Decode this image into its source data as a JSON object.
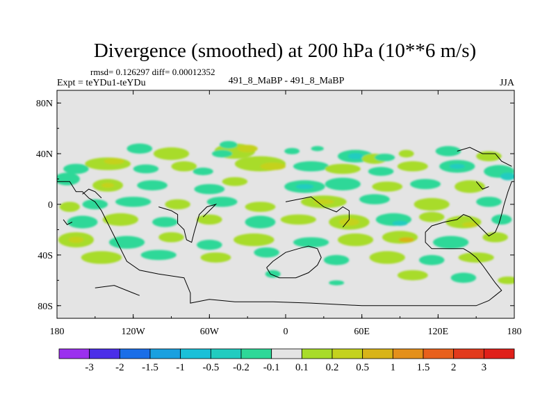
{
  "chart_data": {
    "type": "heatmap",
    "title": "Divergence (smoothed) at 200 hPa (10**6 m/s)",
    "stats_line": "rmsd= 0.126297 diff= 0.00012352",
    "left_label": "Expt = teYDu1-teYDu",
    "center_label": "491_8_MaBP - 491_8_MaBP",
    "right_label": "JJA",
    "x_axis": {
      "range": [
        -180,
        180
      ],
      "ticks": [
        {
          "value": -180,
          "label": "180"
        },
        {
          "value": -120,
          "label": "120W"
        },
        {
          "value": -60,
          "label": "60W"
        },
        {
          "value": 0,
          "label": "0"
        },
        {
          "value": 60,
          "label": "60E"
        },
        {
          "value": 120,
          "label": "120E"
        },
        {
          "value": 180,
          "label": "180"
        }
      ]
    },
    "y_axis": {
      "range": [
        -90,
        90
      ],
      "ticks": [
        {
          "value": 80,
          "label": "80N"
        },
        {
          "value": 40,
          "label": "40N"
        },
        {
          "value": 0,
          "label": "0"
        },
        {
          "value": -40,
          "label": "40S"
        },
        {
          "value": -80,
          "label": "80S"
        }
      ]
    },
    "colorbar": {
      "labels": [
        "-3",
        "-2",
        "-1.5",
        "-1",
        "-0.5",
        "-0.2",
        "-0.1",
        "0.1",
        "0.2",
        "0.5",
        "1",
        "1.5",
        "2",
        "3"
      ],
      "colors": [
        "#9b30ee",
        "#4b2ee8",
        "#1a6ee8",
        "#1aa0e0",
        "#1ac0d8",
        "#22ccc0",
        "#2ed898",
        "#e4e4e4",
        "#a8dc2a",
        "#c4d21e",
        "#d8b418",
        "#e4901a",
        "#e8601c",
        "#e23a1c",
        "#e0201a"
      ]
    },
    "anomaly_colors": {
      "pos1": "#a8dc2a",
      "pos2": "#c4d21e",
      "pos3": "#d8b418",
      "neg1": "#2ed898",
      "neg2": "#22ccc0",
      "neg3": "#1ac0d8"
    },
    "field_blobs": [
      {
        "lon": 55,
        "lat": 38,
        "rlon": 14,
        "rlat": 5,
        "level": -1
      },
      {
        "lon": 55,
        "lat": 38,
        "rlon": 6,
        "rlat": 2.5,
        "level": -2
      },
      {
        "lon": 70,
        "lat": 36,
        "rlon": 10,
        "rlat": 4,
        "level": 1
      },
      {
        "lon": 78,
        "lat": 37,
        "rlon": 8,
        "rlat": 3,
        "level": -1
      },
      {
        "lon": -115,
        "lat": 44,
        "rlon": 10,
        "rlat": 4,
        "level": -1
      },
      {
        "lon": -90,
        "lat": 40,
        "rlon": 14,
        "rlat": 5,
        "level": 1
      },
      {
        "lon": -40,
        "lat": 42,
        "rlon": 16,
        "rlat": 6,
        "level": 1
      },
      {
        "lon": -30,
        "lat": 44,
        "rlon": 8,
        "rlat": 3,
        "level": 2
      },
      {
        "lon": -50,
        "lat": 40,
        "rlon": 8,
        "rlat": 3,
        "level": -1
      },
      {
        "lon": -45,
        "lat": 47,
        "rlon": 7,
        "rlat": 3,
        "level": -1
      },
      {
        "lon": 5,
        "lat": 42,
        "rlon": 6,
        "rlat": 2.5,
        "level": -1
      },
      {
        "lon": 25,
        "lat": 44,
        "rlon": 5,
        "rlat": 2,
        "level": -1
      },
      {
        "lon": 95,
        "lat": 40,
        "rlon": 6,
        "rlat": 3,
        "level": 1
      },
      {
        "lon": 128,
        "lat": 42,
        "rlon": 10,
        "rlat": 4,
        "level": -1
      },
      {
        "lon": 160,
        "lat": 38,
        "rlon": 10,
        "rlat": 4,
        "level": 1
      },
      {
        "lon": -140,
        "lat": 32,
        "rlon": 18,
        "rlat": 5,
        "level": 1
      },
      {
        "lon": -135,
        "lat": 34,
        "rlon": 8,
        "rlat": 2.5,
        "level": 2
      },
      {
        "lon": -165,
        "lat": 28,
        "rlon": 10,
        "rlat": 4,
        "level": -1
      },
      {
        "lon": -110,
        "lat": 28,
        "rlon": 10,
        "rlat": 3.5,
        "level": -1
      },
      {
        "lon": -80,
        "lat": 30,
        "rlon": 10,
        "rlat": 4,
        "level": 1
      },
      {
        "lon": -65,
        "lat": 26,
        "rlon": 8,
        "rlat": 3,
        "level": -1
      },
      {
        "lon": -20,
        "lat": 32,
        "rlon": 20,
        "rlat": 6,
        "level": 1
      },
      {
        "lon": -10,
        "lat": 30,
        "rlon": 10,
        "rlat": 3,
        "level": 2
      },
      {
        "lon": 20,
        "lat": 30,
        "rlon": 14,
        "rlat": 4,
        "level": -1
      },
      {
        "lon": 45,
        "lat": 28,
        "rlon": 14,
        "rlat": 4,
        "level": 1
      },
      {
        "lon": 75,
        "lat": 26,
        "rlon": 10,
        "rlat": 3.5,
        "level": -1
      },
      {
        "lon": 100,
        "lat": 30,
        "rlon": 12,
        "rlat": 4,
        "level": 1
      },
      {
        "lon": 135,
        "lat": 30,
        "rlon": 14,
        "rlat": 5,
        "level": -1
      },
      {
        "lon": 135,
        "lat": 30,
        "rlon": 6,
        "rlat": 2,
        "level": -2
      },
      {
        "lon": 168,
        "lat": 26,
        "rlon": 12,
        "rlat": 5,
        "level": -1
      },
      {
        "lon": 175,
        "lat": 22,
        "rlon": 6,
        "rlat": 3,
        "level": -2
      },
      {
        "lon": -172,
        "lat": 20,
        "rlon": 10,
        "rlat": 5,
        "level": -1
      },
      {
        "lon": -140,
        "lat": 15,
        "rlon": 12,
        "rlat": 5,
        "level": 1
      },
      {
        "lon": -140,
        "lat": 15,
        "rlon": 5,
        "rlat": 2,
        "level": 2
      },
      {
        "lon": -105,
        "lat": 15,
        "rlon": 12,
        "rlat": 4,
        "level": -1
      },
      {
        "lon": -60,
        "lat": 12,
        "rlon": 12,
        "rlat": 4,
        "level": -1
      },
      {
        "lon": -40,
        "lat": 18,
        "rlon": 10,
        "rlat": 3.5,
        "level": 1
      },
      {
        "lon": 15,
        "lat": 14,
        "rlon": 16,
        "rlat": 5,
        "level": -1
      },
      {
        "lon": 15,
        "lat": 14,
        "rlon": 7,
        "rlat": 2,
        "level": -2
      },
      {
        "lon": 45,
        "lat": 16,
        "rlon": 14,
        "rlat": 5,
        "level": -1
      },
      {
        "lon": 80,
        "lat": 14,
        "rlon": 12,
        "rlat": 4,
        "level": 1
      },
      {
        "lon": 110,
        "lat": 16,
        "rlon": 12,
        "rlat": 4,
        "level": -1
      },
      {
        "lon": 145,
        "lat": 14,
        "rlon": 12,
        "rlat": 5,
        "level": 1
      },
      {
        "lon": -150,
        "lat": 0,
        "rlon": 10,
        "rlat": 4,
        "level": -1
      },
      {
        "lon": -170,
        "lat": -2,
        "rlon": 8,
        "rlat": 4,
        "level": 1
      },
      {
        "lon": -120,
        "lat": 2,
        "rlon": 14,
        "rlat": 4,
        "level": -1
      },
      {
        "lon": -85,
        "lat": 0,
        "rlon": 10,
        "rlat": 4,
        "level": 1
      },
      {
        "lon": -50,
        "lat": 2,
        "rlon": 12,
        "rlat": 4,
        "level": -1
      },
      {
        "lon": -20,
        "lat": -2,
        "rlon": 12,
        "rlat": 4,
        "level": 1
      },
      {
        "lon": 30,
        "lat": 2,
        "rlon": 18,
        "rlat": 5,
        "level": 1
      },
      {
        "lon": 30,
        "lat": 2,
        "rlon": 8,
        "rlat": 2,
        "level": 2
      },
      {
        "lon": 70,
        "lat": 4,
        "rlon": 12,
        "rlat": 4,
        "level": -1
      },
      {
        "lon": 115,
        "lat": 0,
        "rlon": 14,
        "rlat": 5,
        "level": 1
      },
      {
        "lon": 160,
        "lat": 2,
        "rlon": 10,
        "rlat": 4,
        "level": -1
      },
      {
        "lon": -160,
        "lat": -14,
        "rlon": 12,
        "rlat": 5,
        "level": -1
      },
      {
        "lon": -130,
        "lat": -12,
        "rlon": 14,
        "rlat": 5,
        "level": 1
      },
      {
        "lon": -95,
        "lat": -14,
        "rlon": 10,
        "rlat": 4,
        "level": -1
      },
      {
        "lon": -60,
        "lat": -12,
        "rlon": 10,
        "rlat": 4,
        "level": 1
      },
      {
        "lon": -20,
        "lat": -14,
        "rlon": 12,
        "rlat": 5,
        "level": -1
      },
      {
        "lon": 10,
        "lat": -12,
        "rlon": 14,
        "rlat": 4,
        "level": 1
      },
      {
        "lon": 50,
        "lat": -14,
        "rlon": 16,
        "rlat": 6,
        "level": 1
      },
      {
        "lon": 50,
        "lat": -14,
        "rlon": 8,
        "rlat": 3,
        "level": 2
      },
      {
        "lon": 85,
        "lat": -12,
        "rlon": 14,
        "rlat": 5,
        "level": -1
      },
      {
        "lon": 90,
        "lat": -15,
        "rlon": 6,
        "rlat": 2,
        "level": -2
      },
      {
        "lon": 115,
        "lat": -10,
        "rlon": 10,
        "rlat": 4,
        "level": 1
      },
      {
        "lon": 140,
        "lat": -14,
        "rlon": 14,
        "rlat": 5,
        "level": 1
      },
      {
        "lon": 145,
        "lat": -16,
        "rlon": 6,
        "rlat": 2,
        "level": 2
      },
      {
        "lon": 170,
        "lat": -12,
        "rlon": 8,
        "rlat": 4,
        "level": -1
      },
      {
        "lon": -165,
        "lat": -28,
        "rlon": 14,
        "rlat": 6,
        "level": 1
      },
      {
        "lon": -165,
        "lat": -28,
        "rlon": 6,
        "rlat": 2.5,
        "level": 2
      },
      {
        "lon": -125,
        "lat": -30,
        "rlon": 14,
        "rlat": 5,
        "level": -1
      },
      {
        "lon": -90,
        "lat": -26,
        "rlon": 10,
        "rlat": 4,
        "level": 1
      },
      {
        "lon": -60,
        "lat": -32,
        "rlon": 10,
        "rlat": 4,
        "level": -1
      },
      {
        "lon": -25,
        "lat": -28,
        "rlon": 16,
        "rlat": 5,
        "level": 1
      },
      {
        "lon": 20,
        "lat": -30,
        "rlon": 14,
        "rlat": 4,
        "level": -1
      },
      {
        "lon": 55,
        "lat": -28,
        "rlon": 14,
        "rlat": 5,
        "level": 1
      },
      {
        "lon": 90,
        "lat": -26,
        "rlon": 14,
        "rlat": 5,
        "level": 1
      },
      {
        "lon": 95,
        "lat": -28,
        "rlon": 6,
        "rlat": 2,
        "level": 3
      },
      {
        "lon": 130,
        "lat": -30,
        "rlon": 14,
        "rlat": 5,
        "level": -1
      },
      {
        "lon": 165,
        "lat": -26,
        "rlon": 10,
        "rlat": 4,
        "level": 1
      },
      {
        "lon": -145,
        "lat": -42,
        "rlon": 16,
        "rlat": 5,
        "level": 1
      },
      {
        "lon": -100,
        "lat": -40,
        "rlon": 14,
        "rlat": 4,
        "level": -1
      },
      {
        "lon": -55,
        "lat": -42,
        "rlon": 12,
        "rlat": 4,
        "level": 1
      },
      {
        "lon": -15,
        "lat": -38,
        "rlon": 10,
        "rlat": 4,
        "level": -1
      },
      {
        "lon": 40,
        "lat": -44,
        "rlon": 10,
        "rlat": 4,
        "level": -1
      },
      {
        "lon": 80,
        "lat": -42,
        "rlon": 14,
        "rlat": 5,
        "level": 1
      },
      {
        "lon": 115,
        "lat": -44,
        "rlon": 10,
        "rlat": 4,
        "level": -1
      },
      {
        "lon": 150,
        "lat": -42,
        "rlon": 14,
        "rlat": 4,
        "level": 1
      },
      {
        "lon": 100,
        "lat": -56,
        "rlon": 12,
        "rlat": 4,
        "level": 1
      },
      {
        "lon": 140,
        "lat": -58,
        "rlon": 10,
        "rlat": 4,
        "level": -1
      },
      {
        "lon": 175,
        "lat": -60,
        "rlon": 8,
        "rlat": 3,
        "level": 1
      },
      {
        "lon": -10,
        "lat": -55,
        "rlon": 6,
        "rlat": 3,
        "level": -1
      },
      {
        "lon": 40,
        "lat": -62,
        "rlon": 6,
        "rlat": 2,
        "level": -1
      }
    ],
    "coastlines": [
      [
        [
          -180,
          18
        ],
        [
          -170,
          18
        ],
        [
          -165,
          10
        ],
        [
          -160,
          10
        ],
        [
          -155,
          5
        ],
        [
          -150,
          2
        ],
        [
          -145,
          -5
        ],
        [
          -140,
          -15
        ],
        [
          -135,
          -25
        ],
        [
          -130,
          -35
        ],
        [
          -125,
          -45
        ],
        [
          -115,
          -52
        ],
        [
          -100,
          -55
        ],
        [
          -80,
          -58
        ],
        [
          -75,
          -70
        ],
        [
          -75,
          -78
        ],
        [
          -60,
          -75
        ],
        [
          -40,
          -77
        ],
        [
          -10,
          -77
        ],
        [
          20,
          -78
        ],
        [
          60,
          -80
        ],
        [
          100,
          -80
        ],
        [
          130,
          -80
        ],
        [
          150,
          -80
        ],
        [
          160,
          -76
        ],
        [
          165,
          -72
        ],
        [
          170,
          -68
        ],
        [
          165,
          -62
        ],
        [
          160,
          -55
        ],
        [
          155,
          -48
        ],
        [
          150,
          -42
        ],
        [
          145,
          -38
        ],
        [
          140,
          -35
        ],
        [
          125,
          -35
        ],
        [
          115,
          -35
        ],
        [
          110,
          -30
        ],
        [
          110,
          -22
        ],
        [
          115,
          -17
        ],
        [
          125,
          -14
        ],
        [
          135,
          -12
        ],
        [
          140,
          -8
        ],
        [
          145,
          -10
        ],
        [
          150,
          -15
        ],
        [
          155,
          -20
        ],
        [
          160,
          -25
        ],
        [
          165,
          -22
        ],
        [
          168,
          -15
        ],
        [
          170,
          -8
        ],
        [
          172,
          0
        ],
        [
          175,
          10
        ],
        [
          178,
          18
        ],
        [
          180,
          18
        ]
      ],
      [
        [
          -160,
          8
        ],
        [
          -155,
          12
        ],
        [
          -150,
          10
        ],
        [
          -145,
          5
        ]
      ],
      [
        [
          -100,
          -2
        ],
        [
          -90,
          -5
        ],
        [
          -85,
          -8
        ],
        [
          -85,
          -15
        ],
        [
          -80,
          -20
        ],
        [
          -78,
          -28
        ],
        [
          -74,
          -30
        ],
        [
          -72,
          -22
        ],
        [
          -70,
          -15
        ],
        [
          -68,
          -8
        ],
        [
          -62,
          -2
        ],
        [
          -55,
          0
        ],
        [
          -60,
          -5
        ],
        [
          -65,
          -10
        ]
      ],
      [
        [
          0,
          2
        ],
        [
          10,
          4
        ],
        [
          20,
          6
        ],
        [
          25,
          2
        ],
        [
          30,
          -2
        ],
        [
          40,
          -6
        ],
        [
          45,
          -2
        ],
        [
          50,
          -5
        ],
        [
          50,
          -12
        ],
        [
          45,
          -18
        ]
      ],
      [
        [
          -15,
          -50
        ],
        [
          -10,
          -45
        ],
        [
          0,
          -38
        ],
        [
          10,
          -35
        ],
        [
          18,
          -33
        ],
        [
          25,
          -35
        ],
        [
          28,
          -42
        ],
        [
          25,
          -48
        ],
        [
          18,
          -54
        ],
        [
          8,
          -58
        ],
        [
          -5,
          -58
        ],
        [
          -12,
          -55
        ],
        [
          -15,
          -50
        ]
      ],
      [
        [
          -150,
          -66
        ],
        [
          -135,
          -64
        ],
        [
          -120,
          -70
        ],
        [
          -115,
          -72
        ]
      ],
      [
        [
          135,
          42
        ],
        [
          145,
          45
        ],
        [
          155,
          40
        ],
        [
          165,
          40
        ],
        [
          170,
          34
        ],
        [
          178,
          30
        ]
      ],
      [
        [
          150,
          18
        ],
        [
          155,
          12
        ],
        [
          160,
          14
        ]
      ],
      [
        [
          -175,
          -12
        ],
        [
          -172,
          -16
        ],
        [
          -168,
          -14
        ]
      ]
    ]
  }
}
